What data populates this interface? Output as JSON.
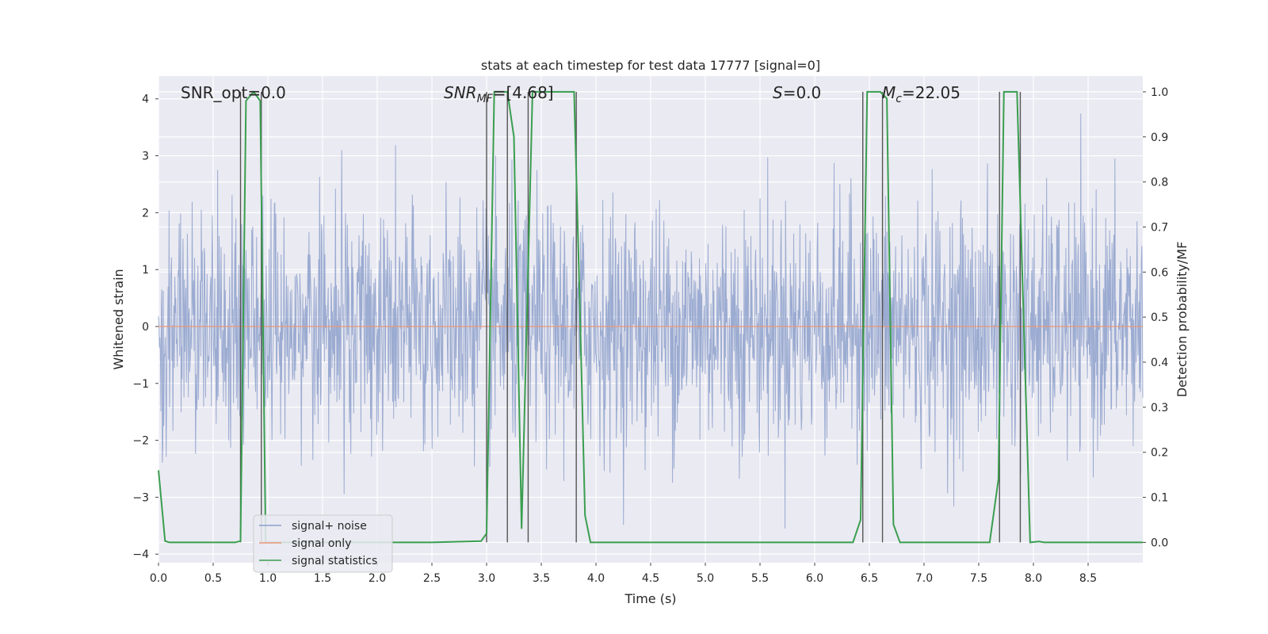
{
  "chart_data": {
    "type": "line",
    "title": "stats at each timestep for test data 17777 [signal=0]",
    "xlabel": "Time (s)",
    "ylabel_left": "Whitened strain",
    "ylabel_right": "Detection probability/MF",
    "xlim": [
      0,
      9.0
    ],
    "ylim_left": [
      -4.15,
      4.4
    ],
    "ylim_right": [
      -0.045,
      1.035
    ],
    "x_ticks": [
      "0.0",
      "0.5",
      "1.0",
      "1.5",
      "2.0",
      "2.5",
      "3.0",
      "3.5",
      "4.0",
      "4.5",
      "5.0",
      "5.5",
      "6.0",
      "6.5",
      "7.0",
      "7.5",
      "8.0",
      "8.5"
    ],
    "y_ticks_left": [
      "4",
      "3",
      "2",
      "1",
      "0",
      "−1",
      "−2",
      "−3",
      "−4"
    ],
    "y_ticks_right": [
      "1.0",
      "0.9",
      "0.8",
      "0.7",
      "0.6",
      "0.5",
      "0.4",
      "0.3",
      "0.2",
      "0.1",
      "0.0"
    ],
    "grid": true,
    "legend_position": "lower-left",
    "annotations": {
      "snr_opt": "SNR_opt=0.0",
      "snr_mf_main": "SNR",
      "snr_mf_sub": "MF",
      "snr_mf_value": "=[4.68]",
      "s_symbol": "S",
      "s_value": "=0.0",
      "mc_symbol": "M",
      "mc_sub": "c",
      "mc_value": "=22.05"
    },
    "series": [
      {
        "name": "signal+ noise",
        "color": "#8da0cb",
        "axis": "left",
        "description_range": [
          -4.0,
          4.0
        ]
      },
      {
        "name": "signal only",
        "color": "#e8977a",
        "axis": "left",
        "x": [
          0,
          9.0
        ],
        "y": [
          0,
          0
        ]
      },
      {
        "name": "signal statistics",
        "color": "#3a9e4f",
        "axis": "right",
        "x": [
          0.0,
          0.06,
          0.1,
          0.5,
          0.7,
          0.75,
          0.8,
          0.87,
          0.93,
          0.98,
          1.04,
          1.1,
          2.5,
          2.95,
          3.0,
          3.07,
          3.19,
          3.25,
          3.32,
          3.42,
          3.47,
          3.8,
          3.85,
          3.9,
          3.95,
          4.2,
          6.35,
          6.42,
          6.48,
          6.6,
          6.66,
          6.72,
          6.78,
          6.85,
          7.6,
          7.68,
          7.73,
          7.85,
          7.97,
          8.05,
          8.1,
          8.3,
          9.0
        ],
        "y": [
          0.16,
          0.003,
          0.0,
          0.0,
          0.0,
          0.003,
          0.98,
          1.0,
          0.98,
          0.0,
          0.0,
          0.0,
          0.0,
          0.003,
          0.02,
          1.0,
          1.0,
          0.9,
          0.03,
          1.0,
          1.0,
          1.0,
          0.55,
          0.06,
          0.0,
          0.0,
          0.0,
          0.05,
          1.0,
          1.0,
          0.985,
          0.04,
          0.0,
          0.0,
          0.0,
          0.14,
          1.0,
          1.0,
          0.0,
          0.002,
          0.0,
          0.0,
          0.0
        ]
      }
    ],
    "vertical_markers_s": [
      0.75,
      0.94,
      3.0,
      3.19,
      3.38,
      3.82,
      6.44,
      6.62,
      7.69,
      7.88
    ]
  }
}
